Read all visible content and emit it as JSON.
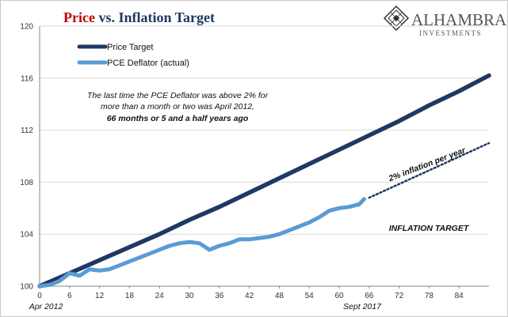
{
  "colors": {
    "price_target": "#1f3864",
    "pce": "#5b9bd5",
    "title_red": "#c00000",
    "title_blue": "#1f3864",
    "inflation_label": "#c00000",
    "dotted": "#1f3864"
  },
  "logo": {
    "name": "ALHAMBRA",
    "sub": "INVESTMENTS",
    "icon": "diamond-lattice-icon"
  },
  "annotation": {
    "line1": "The last time the PCE Deflator was above 2% for",
    "line2": "more than a month or two was April 2012,",
    "line3": "66 months or 5 and a half years ago"
  },
  "dotted_label": "2% inflation per year",
  "inflation_target_label": "INFLATION TARGET",
  "x_start_label": "Apr 2012",
  "x_end_label": "Sept 2017",
  "chart_data": {
    "type": "line",
    "title_parts": [
      "Price",
      " vs. ",
      "Inflation Target"
    ],
    "xlim": [
      0,
      90
    ],
    "ylim": [
      100,
      120
    ],
    "x_ticks": [
      0,
      6,
      12,
      18,
      24,
      30,
      36,
      42,
      48,
      54,
      60,
      66,
      72,
      78,
      84
    ],
    "y_ticks": [
      100,
      104,
      108,
      112,
      116,
      120
    ],
    "legend_position": "top-left",
    "series": [
      {
        "name": "Price Target",
        "x": [
          0,
          6,
          12,
          18,
          24,
          30,
          36,
          42,
          48,
          54,
          60,
          66,
          72,
          78,
          84,
          90
        ],
        "y": [
          100,
          101.0,
          102.0,
          103.0,
          104.0,
          105.1,
          106.1,
          107.2,
          108.3,
          109.4,
          110.5,
          111.6,
          112.7,
          113.9,
          115.0,
          116.2
        ]
      },
      {
        "name": "PCE Deflator (actual)",
        "x": [
          0,
          2,
          4,
          6,
          8,
          10,
          12,
          14,
          16,
          18,
          20,
          22,
          24,
          26,
          28,
          30,
          32,
          34,
          36,
          38,
          40,
          42,
          44,
          46,
          48,
          50,
          52,
          54,
          56,
          58,
          60,
          62,
          64,
          65
        ],
        "y": [
          100,
          100.1,
          100.4,
          101.0,
          100.8,
          101.3,
          101.2,
          101.3,
          101.6,
          101.9,
          102.2,
          102.5,
          102.8,
          103.1,
          103.3,
          103.4,
          103.3,
          102.8,
          103.1,
          103.3,
          103.6,
          103.6,
          103.7,
          103.8,
          104.0,
          104.3,
          104.6,
          104.9,
          105.3,
          105.8,
          106.0,
          106.1,
          106.3,
          106.7
        ]
      },
      {
        "name": "2% inflation per year",
        "style": "dotted",
        "x": [
          66,
          90
        ],
        "y": [
          106.8,
          111.0
        ]
      }
    ]
  }
}
